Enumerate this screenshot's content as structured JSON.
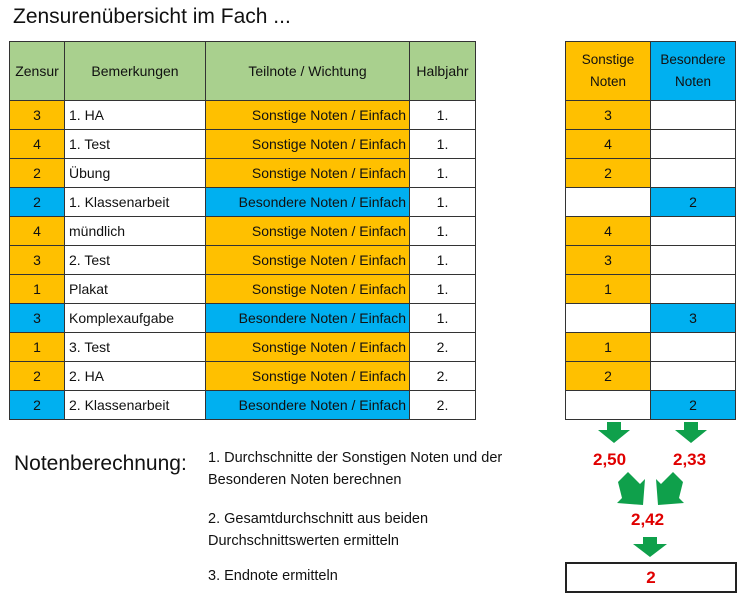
{
  "title": "Zensurenübersicht im Fach ...",
  "headers": [
    "Zensur",
    "Bemerkungen",
    "Teilnote / Wichtung",
    "Halbjahr"
  ],
  "side_headers": [
    "Sonstige Noten",
    "Besondere Noten"
  ],
  "rows": [
    {
      "zensur": "3",
      "bem": "1. HA",
      "teil": "Sonstige Noten / Einfach",
      "hj": "1.",
      "type": "s"
    },
    {
      "zensur": "4",
      "bem": "1. Test",
      "teil": "Sonstige Noten / Einfach",
      "hj": "1.",
      "type": "s"
    },
    {
      "zensur": "2",
      "bem": "Übung",
      "teil": "Sonstige Noten / Einfach",
      "hj": "1.",
      "type": "s"
    },
    {
      "zensur": "2",
      "bem": "1. Klassenarbeit",
      "teil": "Besondere Noten / Einfach",
      "hj": "1.",
      "type": "b"
    },
    {
      "zensur": "4",
      "bem": "mündlich",
      "teil": "Sonstige Noten / Einfach",
      "hj": "1.",
      "type": "s"
    },
    {
      "zensur": "3",
      "bem": "2. Test",
      "teil": "Sonstige Noten / Einfach",
      "hj": "1.",
      "type": "s"
    },
    {
      "zensur": "1",
      "bem": "Plakat",
      "teil": "Sonstige Noten / Einfach",
      "hj": "1.",
      "type": "s"
    },
    {
      "zensur": "3",
      "bem": "Komplexaufgabe",
      "teil": "Besondere Noten / Einfach",
      "hj": "1.",
      "type": "b"
    },
    {
      "zensur": "1",
      "bem": "3. Test",
      "teil": "Sonstige Noten / Einfach",
      "hj": "2.",
      "type": "s"
    },
    {
      "zensur": "2",
      "bem": "2. HA",
      "teil": "Sonstige Noten / Einfach",
      "hj": "2.",
      "type": "s"
    },
    {
      "zensur": "2",
      "bem": "2. Klassenarbeit",
      "teil": "Besondere Noten / Einfach",
      "hj": "2.",
      "type": "b"
    }
  ],
  "calc": {
    "heading": "Notenberechnung:",
    "step1": "1. Durchschnitte der Sonstigen Noten und der Besonderen Noten berechnen",
    "step2": "2. Gesamtdurchschnitt aus beiden Durchschnittswerten ermitteln",
    "step3": "3. Endnote ermitteln",
    "avg_sonstige": "2,50",
    "avg_besondere": "2,33",
    "avg_total": "2,42",
    "final": "2"
  },
  "colors": {
    "sonstige": "#FFC000",
    "besondere": "#00B0F0",
    "header": "#A9D08E",
    "arrow": "#0FA04B",
    "result": "#E00000"
  }
}
